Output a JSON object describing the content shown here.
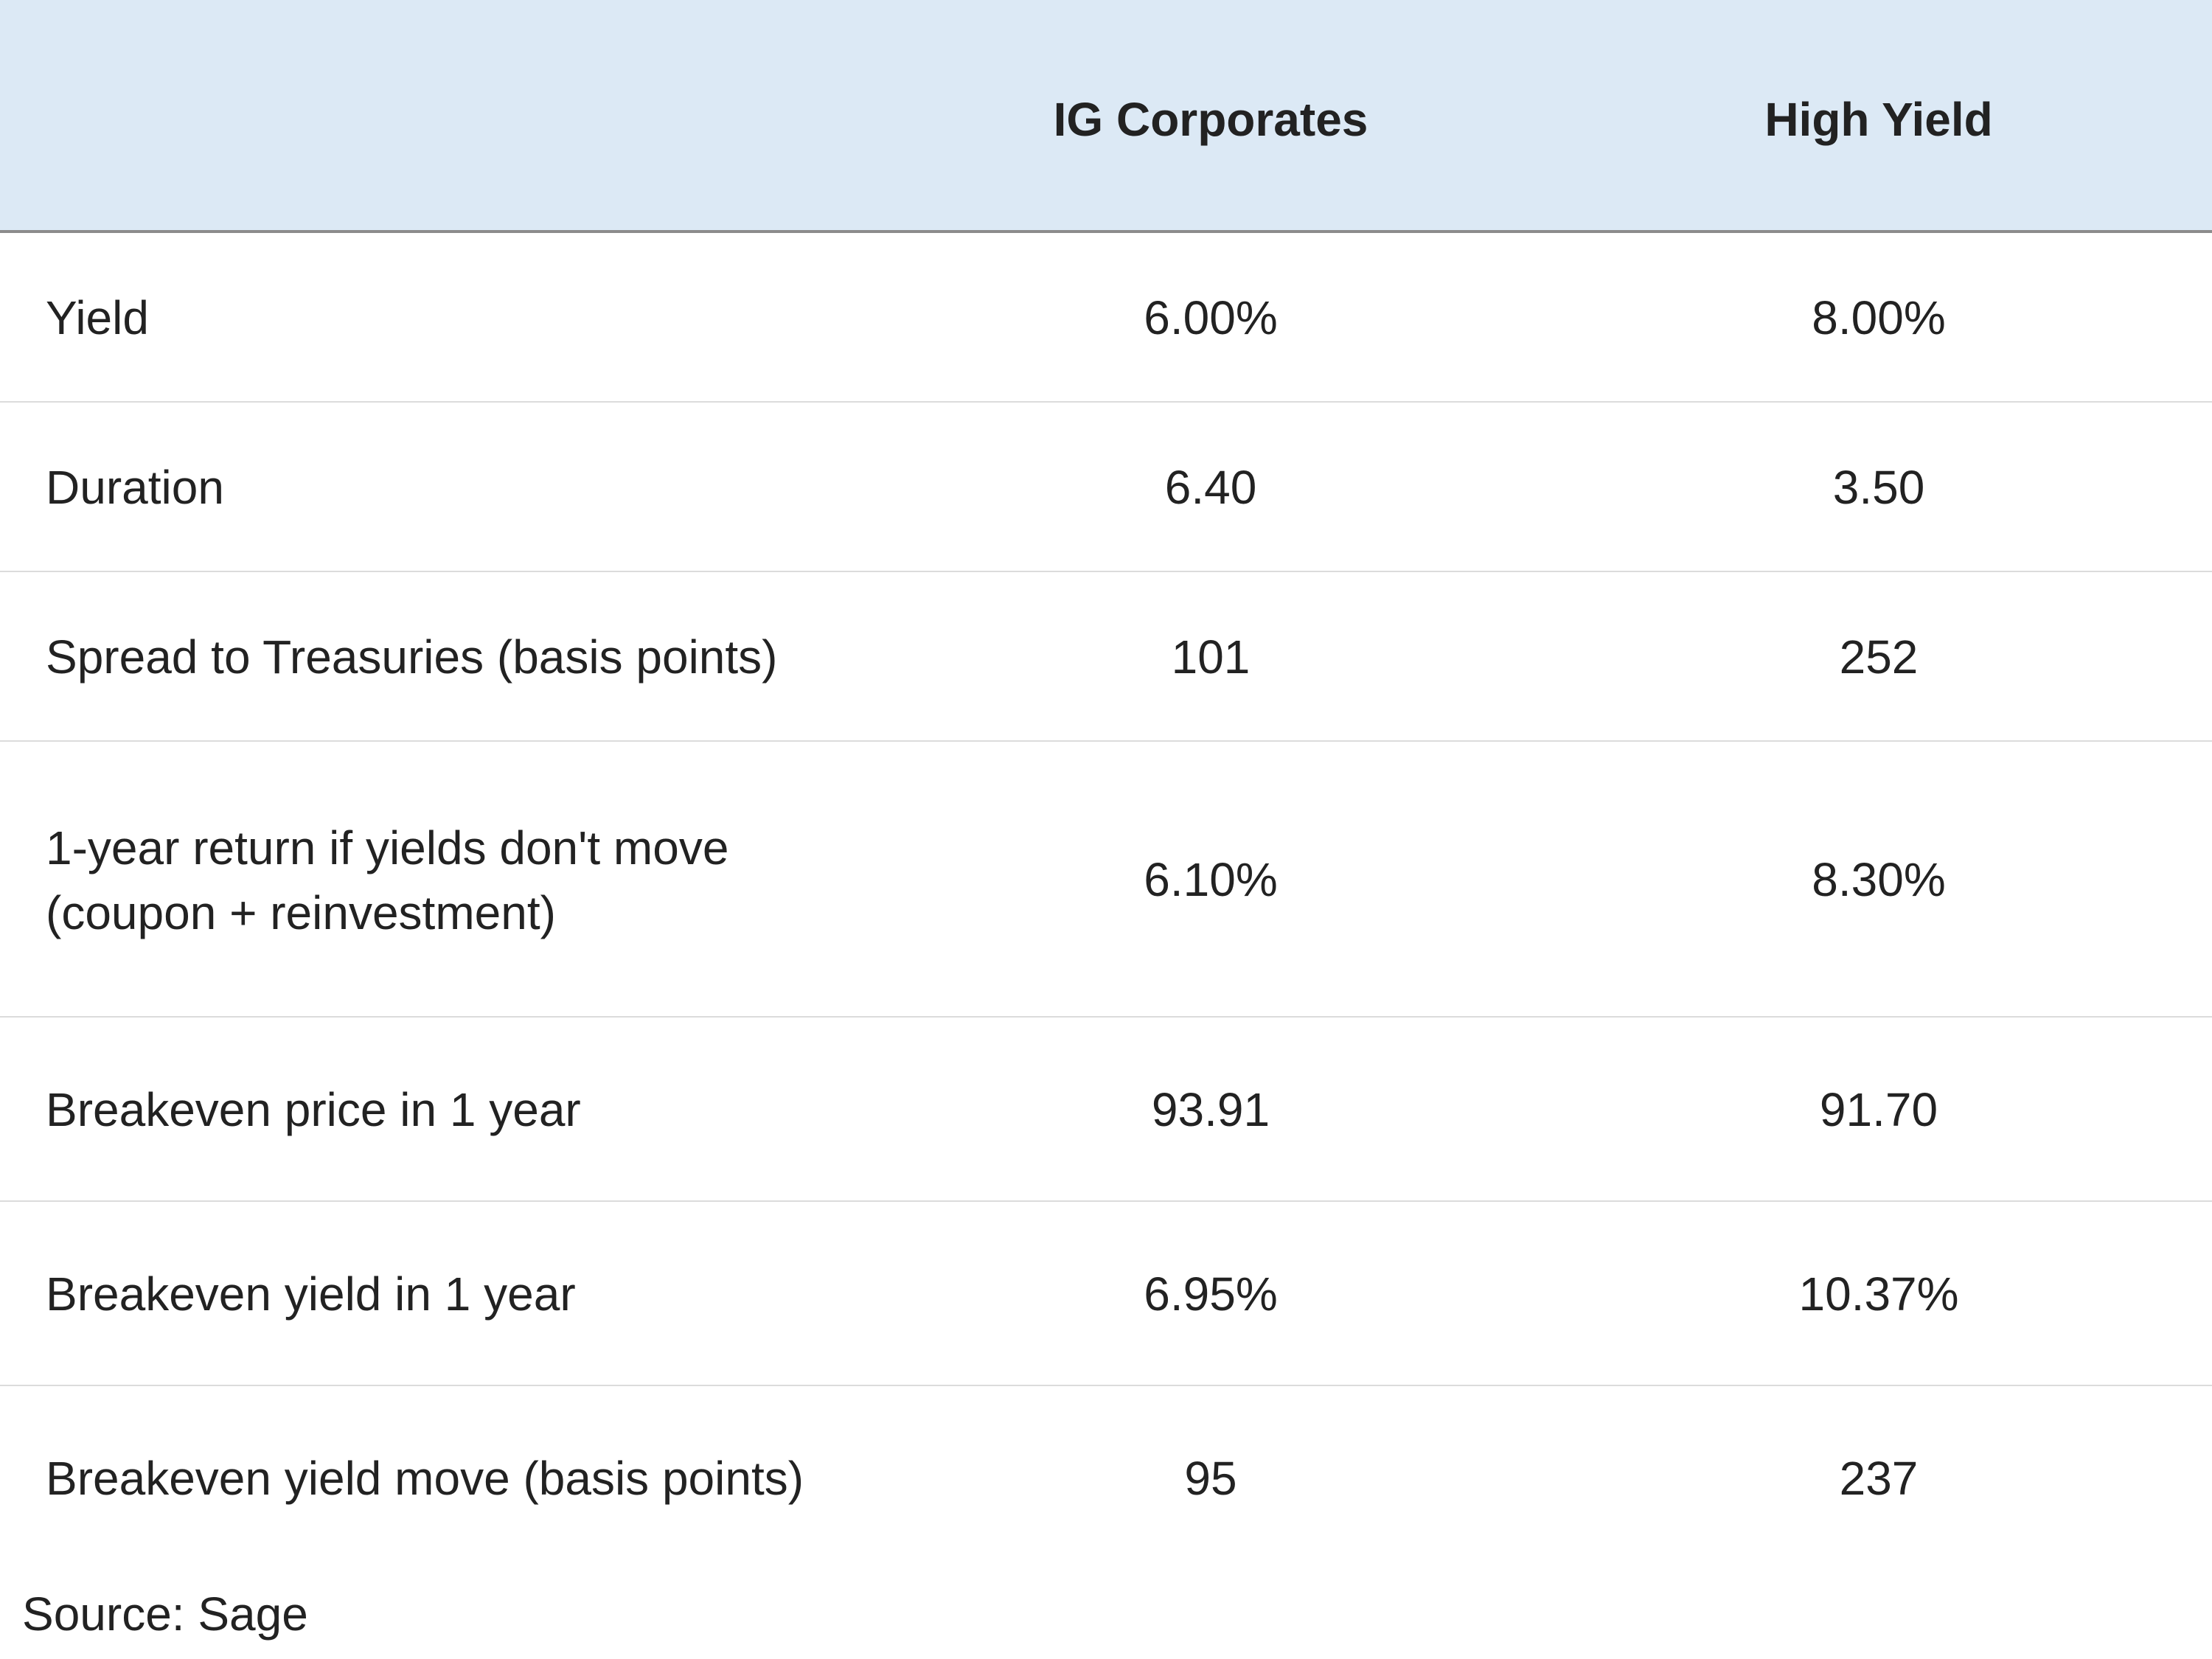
{
  "chart_data": {
    "type": "table",
    "columns": [
      "",
      "IG Corporates",
      "High Yield"
    ],
    "rows": [
      {
        "label": "Yield",
        "values": [
          "6.00%",
          "8.00%"
        ]
      },
      {
        "label": "Duration",
        "values": [
          "6.40",
          "3.50"
        ]
      },
      {
        "label": "Spread to Treasuries (basis points)",
        "values": [
          "101",
          "252"
        ]
      },
      {
        "label": "1-year return if yields don't move (coupon + reinvestment)",
        "values": [
          "6.10%",
          "8.30%"
        ]
      },
      {
        "label": "Breakeven price in 1 year",
        "values": [
          "93.91",
          "91.70"
        ]
      },
      {
        "label": "Breakeven yield in 1 year",
        "values": [
          "6.95%",
          "10.37%"
        ]
      },
      {
        "label": "Breakeven yield move (basis points)",
        "values": [
          "95",
          "237"
        ]
      }
    ],
    "source": "Source: Sage",
    "colors": {
      "header_background": "#dce9f5",
      "header_rule": "#8c8c8c",
      "row_rule": "#dcdcdc",
      "text": "#222222"
    }
  }
}
